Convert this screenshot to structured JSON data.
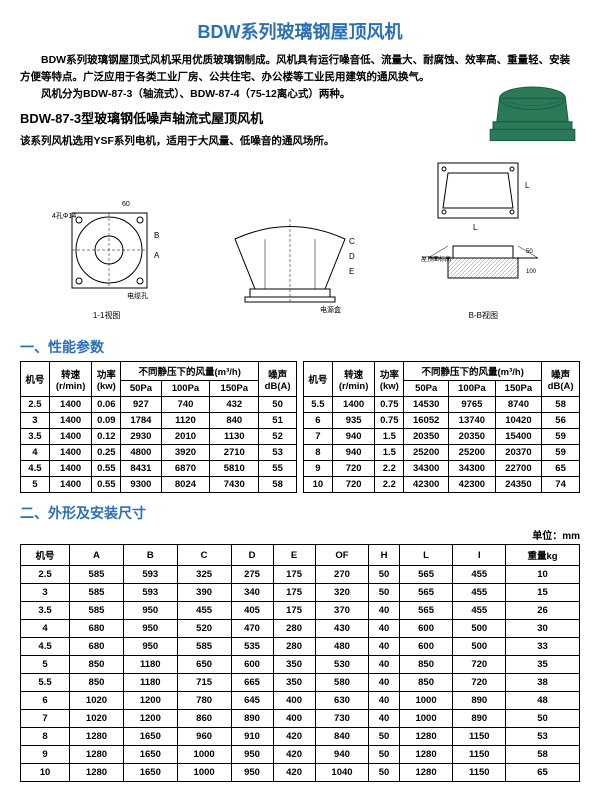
{
  "title": "BDW系列玻璃钢屋顶风机",
  "intro": "　　BDW系列玻璃钢屋顶式风机采用优质玻璃钢制成。风机具有运行噪音低、流量大、耐腐蚀、效率高、重量轻、安装方便等特点。广泛应用于各类工业厂房、公共住宅、办公楼等工业民用建筑的通风换气。\n　　风机分为BDW-87-3（轴流式）、BDW-87-4（75-12离心式）两种。",
  "subtitle": "BDW-87-3型玻璃钢低噪声轴流式屋顶风机",
  "subdesc": "该系列风机选用YSF系列电机，适用于大风量、低噪音的通风场所。",
  "diagram_labels": {
    "d1_l1": "4孔Φ14",
    "d1_l2": "电缆孔",
    "d1_l3": "1-1视图",
    "d2_l1": "电源盒",
    "d3_l1": "屋顶面标高",
    "d3_l2": "B-B视图",
    "d1_dim": "60",
    "d3_dim1": "50",
    "d3_dim2": "100"
  },
  "section1": "一、性能参数",
  "perf_headers": {
    "model": "机号",
    "speed": "转速\n(r/min)",
    "power": "功率\n(kw)",
    "flow_group": "不同静压下的风量(m³/h)",
    "p50": "50Pa",
    "p100": "100Pa",
    "p150": "150Pa",
    "noise": "噪声\ndB(A)"
  },
  "perf_left": [
    [
      "2.5",
      "1400",
      "0.06",
      "927",
      "740",
      "432",
      "50"
    ],
    [
      "3",
      "1400",
      "0.09",
      "1784",
      "1120",
      "840",
      "51"
    ],
    [
      "3.5",
      "1400",
      "0.12",
      "2930",
      "2010",
      "1130",
      "52"
    ],
    [
      "4",
      "1400",
      "0.25",
      "4800",
      "3920",
      "2710",
      "53"
    ],
    [
      "4.5",
      "1400",
      "0.55",
      "8431",
      "6870",
      "5810",
      "55"
    ],
    [
      "5",
      "1400",
      "0.55",
      "9300",
      "8024",
      "7430",
      "58"
    ]
  ],
  "perf_right": [
    [
      "5.5",
      "1400",
      "0.75",
      "14530",
      "9765",
      "8740",
      "58"
    ],
    [
      "6",
      "935",
      "0.75",
      "16052",
      "13740",
      "10420",
      "56"
    ],
    [
      "7",
      "940",
      "1.5",
      "20350",
      "20350",
      "15400",
      "59"
    ],
    [
      "8",
      "940",
      "1.5",
      "25200",
      "25200",
      "20370",
      "59"
    ],
    [
      "9",
      "720",
      "2.2",
      "34300",
      "34300",
      "22700",
      "65"
    ],
    [
      "10",
      "720",
      "2.2",
      "42300",
      "42300",
      "24350",
      "74"
    ]
  ],
  "section2": "二、外形及安装尺寸",
  "dim_unit": "单位：mm",
  "dim_headers": [
    "机号",
    "A",
    "B",
    "C",
    "D",
    "E",
    "OF",
    "H",
    "L",
    "I",
    "重量kg"
  ],
  "dim_rows": [
    [
      "2.5",
      "585",
      "593",
      "325",
      "275",
      "175",
      "270",
      "50",
      "565",
      "455",
      "10"
    ],
    [
      "3",
      "585",
      "593",
      "390",
      "340",
      "175",
      "320",
      "50",
      "565",
      "455",
      "15"
    ],
    [
      "3.5",
      "585",
      "950",
      "455",
      "405",
      "175",
      "370",
      "40",
      "565",
      "455",
      "26"
    ],
    [
      "4",
      "680",
      "950",
      "520",
      "470",
      "280",
      "430",
      "40",
      "600",
      "500",
      "30"
    ],
    [
      "4.5",
      "680",
      "950",
      "585",
      "535",
      "280",
      "480",
      "40",
      "600",
      "500",
      "33"
    ],
    [
      "5",
      "850",
      "1180",
      "650",
      "600",
      "350",
      "530",
      "40",
      "850",
      "720",
      "35"
    ],
    [
      "5.5",
      "850",
      "1180",
      "715",
      "665",
      "350",
      "580",
      "40",
      "850",
      "720",
      "38"
    ],
    [
      "6",
      "1020",
      "1200",
      "780",
      "645",
      "400",
      "630",
      "40",
      "1000",
      "890",
      "48"
    ],
    [
      "7",
      "1020",
      "1200",
      "860",
      "890",
      "400",
      "730",
      "40",
      "1000",
      "890",
      "50"
    ],
    [
      "8",
      "1280",
      "1650",
      "960",
      "910",
      "420",
      "840",
      "50",
      "1280",
      "1150",
      "53"
    ],
    [
      "9",
      "1280",
      "1650",
      "1000",
      "950",
      "420",
      "940",
      "50",
      "1280",
      "1150",
      "58"
    ],
    [
      "10",
      "1280",
      "1650",
      "1000",
      "950",
      "420",
      "1040",
      "50",
      "1280",
      "1150",
      "65"
    ]
  ],
  "colors": {
    "title": "#2a6fb8",
    "border": "#000000",
    "product": "#2a7a5a"
  }
}
